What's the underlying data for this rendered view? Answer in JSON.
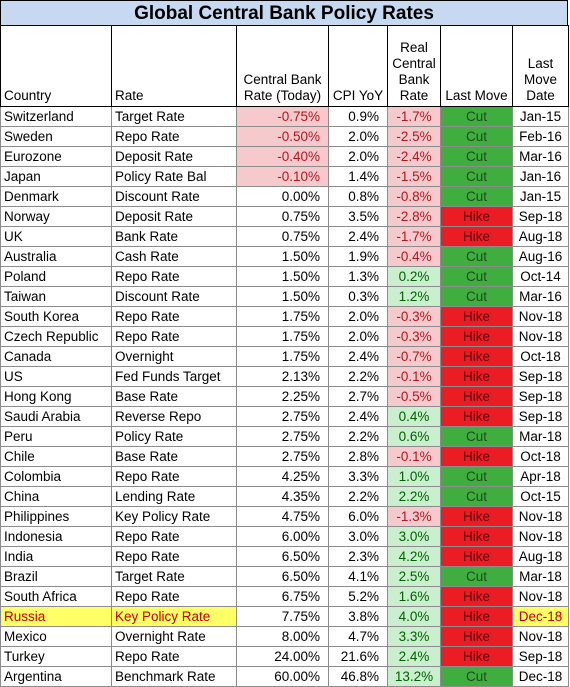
{
  "title": "Global Central Bank Policy Rates",
  "headers": {
    "country": "Country",
    "rate": "Rate",
    "cb_rate": [
      "Central Bank",
      "Rate (Today)"
    ],
    "cpi": "CPI YoY",
    "real": [
      "Real",
      "Central",
      "Bank",
      "Rate"
    ],
    "last_move": "Last Move",
    "last_move_date": [
      "Last",
      "Move",
      "Date"
    ]
  },
  "colors": {
    "title_bg": "#c6d9f1",
    "negative_bg": "#f6c9cd",
    "positive_bg": "#c9efce",
    "cut_bg": "#3fae3f",
    "hike_bg": "#ec1c24",
    "highlight_bg": "#ffff66"
  },
  "rows": [
    {
      "country": "Switzerland",
      "rate": "Target Rate",
      "cb_rate": "-0.75%",
      "cb_neg": true,
      "cpi": "0.9%",
      "real": "-1.7%",
      "real_neg": true,
      "move": "Cut",
      "date": "Jan-15"
    },
    {
      "country": "Sweden",
      "rate": "Repo Rate",
      "cb_rate": "-0.50%",
      "cb_neg": true,
      "cpi": "2.0%",
      "real": "-2.5%",
      "real_neg": true,
      "move": "Cut",
      "date": "Feb-16"
    },
    {
      "country": "Eurozone",
      "rate": "Deposit Rate",
      "cb_rate": "-0.40%",
      "cb_neg": true,
      "cpi": "2.0%",
      "real": "-2.4%",
      "real_neg": true,
      "move": "Cut",
      "date": "Mar-16"
    },
    {
      "country": "Japan",
      "rate": "Policy Rate Bal",
      "cb_rate": "-0.10%",
      "cb_neg": true,
      "cpi": "1.4%",
      "real": "-1.5%",
      "real_neg": true,
      "move": "Cut",
      "date": "Jan-16"
    },
    {
      "country": "Denmark",
      "rate": "Discount Rate",
      "cb_rate": "0.00%",
      "cb_neg": false,
      "cpi": "0.8%",
      "real": "-0.8%",
      "real_neg": true,
      "move": "Cut",
      "date": "Jan-15"
    },
    {
      "country": "Norway",
      "rate": "Deposit Rate",
      "cb_rate": "0.75%",
      "cb_neg": false,
      "cpi": "3.5%",
      "real": "-2.8%",
      "real_neg": true,
      "move": "Hike",
      "date": "Sep-18"
    },
    {
      "country": "UK",
      "rate": "Bank Rate",
      "cb_rate": "0.75%",
      "cb_neg": false,
      "cpi": "2.4%",
      "real": "-1.7%",
      "real_neg": true,
      "move": "Hike",
      "date": "Aug-18"
    },
    {
      "country": "Australia",
      "rate": "Cash Rate",
      "cb_rate": "1.50%",
      "cb_neg": false,
      "cpi": "1.9%",
      "real": "-0.4%",
      "real_neg": true,
      "move": "Cut",
      "date": "Aug-16"
    },
    {
      "country": "Poland",
      "rate": "Repo Rate",
      "cb_rate": "1.50%",
      "cb_neg": false,
      "cpi": "1.3%",
      "real": "0.2%",
      "real_neg": false,
      "move": "Cut",
      "date": "Oct-14"
    },
    {
      "country": "Taiwan",
      "rate": "Discount Rate",
      "cb_rate": "1.50%",
      "cb_neg": false,
      "cpi": "0.3%",
      "real": "1.2%",
      "real_neg": false,
      "move": "Cut",
      "date": "Mar-16"
    },
    {
      "country": "South Korea",
      "rate": "Repo Rate",
      "cb_rate": "1.75%",
      "cb_neg": false,
      "cpi": "2.0%",
      "real": "-0.3%",
      "real_neg": true,
      "move": "Hike",
      "date": "Nov-18"
    },
    {
      "country": "Czech Republic",
      "rate": "Repo Rate",
      "cb_rate": "1.75%",
      "cb_neg": false,
      "cpi": "2.0%",
      "real": "-0.3%",
      "real_neg": true,
      "move": "Hike",
      "date": "Nov-18"
    },
    {
      "country": "Canada",
      "rate": "Overnight",
      "cb_rate": "1.75%",
      "cb_neg": false,
      "cpi": "2.4%",
      "real": "-0.7%",
      "real_neg": true,
      "move": "Hike",
      "date": "Oct-18"
    },
    {
      "country": "US",
      "rate": "Fed Funds Target",
      "cb_rate": "2.13%",
      "cb_neg": false,
      "cpi": "2.2%",
      "real": "-0.1%",
      "real_neg": true,
      "move": "Hike",
      "date": "Sep-18"
    },
    {
      "country": "Hong Kong",
      "rate": "Base Rate",
      "cb_rate": "2.25%",
      "cb_neg": false,
      "cpi": "2.7%",
      "real": "-0.5%",
      "real_neg": true,
      "move": "Hike",
      "date": "Sep-18"
    },
    {
      "country": "Saudi Arabia",
      "rate": "Reverse Repo",
      "cb_rate": "2.75%",
      "cb_neg": false,
      "cpi": "2.4%",
      "real": "0.4%",
      "real_neg": false,
      "move": "Hike",
      "date": "Sep-18"
    },
    {
      "country": "Peru",
      "rate": "Policy Rate",
      "cb_rate": "2.75%",
      "cb_neg": false,
      "cpi": "2.2%",
      "real": "0.6%",
      "real_neg": false,
      "move": "Cut",
      "date": "Mar-18"
    },
    {
      "country": "Chile",
      "rate": "Base Rate",
      "cb_rate": "2.75%",
      "cb_neg": false,
      "cpi": "2.8%",
      "real": "-0.1%",
      "real_neg": true,
      "move": "Hike",
      "date": "Oct-18"
    },
    {
      "country": "Colombia",
      "rate": "Repo Rate",
      "cb_rate": "4.25%",
      "cb_neg": false,
      "cpi": "3.3%",
      "real": "1.0%",
      "real_neg": false,
      "move": "Cut",
      "date": "Apr-18"
    },
    {
      "country": "China",
      "rate": "Lending Rate",
      "cb_rate": "4.35%",
      "cb_neg": false,
      "cpi": "2.2%",
      "real": "2.2%",
      "real_neg": false,
      "move": "Cut",
      "date": "Oct-15"
    },
    {
      "country": "Philippines",
      "rate": "Key Policy Rate",
      "cb_rate": "4.75%",
      "cb_neg": false,
      "cpi": "6.0%",
      "real": "-1.3%",
      "real_neg": true,
      "move": "Hike",
      "date": "Nov-18"
    },
    {
      "country": "Indonesia",
      "rate": "Repo Rate",
      "cb_rate": "6.00%",
      "cb_neg": false,
      "cpi": "3.0%",
      "real": "3.0%",
      "real_neg": false,
      "move": "Hike",
      "date": "Nov-18"
    },
    {
      "country": "India",
      "rate": "Repo Rate",
      "cb_rate": "6.50%",
      "cb_neg": false,
      "cpi": "2.3%",
      "real": "4.2%",
      "real_neg": false,
      "move": "Hike",
      "date": "Aug-18"
    },
    {
      "country": "Brazil",
      "rate": "Target Rate",
      "cb_rate": "6.50%",
      "cb_neg": false,
      "cpi": "4.1%",
      "real": "2.5%",
      "real_neg": false,
      "move": "Cut",
      "date": "Mar-18"
    },
    {
      "country": "South Africa",
      "rate": "Repo Rate",
      "cb_rate": "6.75%",
      "cb_neg": false,
      "cpi": "5.2%",
      "real": "1.6%",
      "real_neg": false,
      "move": "Hike",
      "date": "Nov-18"
    },
    {
      "country": "Russia",
      "rate": "Key Policy Rate",
      "cb_rate": "7.75%",
      "cb_neg": false,
      "cpi": "3.8%",
      "real": "4.0%",
      "real_neg": false,
      "move": "Hike",
      "date": "Dec-18",
      "highlight": true
    },
    {
      "country": "Mexico",
      "rate": "Overnight Rate",
      "cb_rate": "8.00%",
      "cb_neg": false,
      "cpi": "4.7%",
      "real": "3.3%",
      "real_neg": false,
      "move": "Hike",
      "date": "Nov-18"
    },
    {
      "country": "Turkey",
      "rate": "Repo Rate",
      "cb_rate": "24.00%",
      "cb_neg": false,
      "cpi": "21.6%",
      "real": "2.4%",
      "real_neg": false,
      "move": "Hike",
      "date": "Sep-18"
    },
    {
      "country": "Argentina",
      "rate": "Benchmark Rate",
      "cb_rate": "60.00%",
      "cb_neg": false,
      "cpi": "46.8%",
      "real": "13.2%",
      "real_neg": false,
      "move": "Cut",
      "date": "Dec-18"
    }
  ]
}
